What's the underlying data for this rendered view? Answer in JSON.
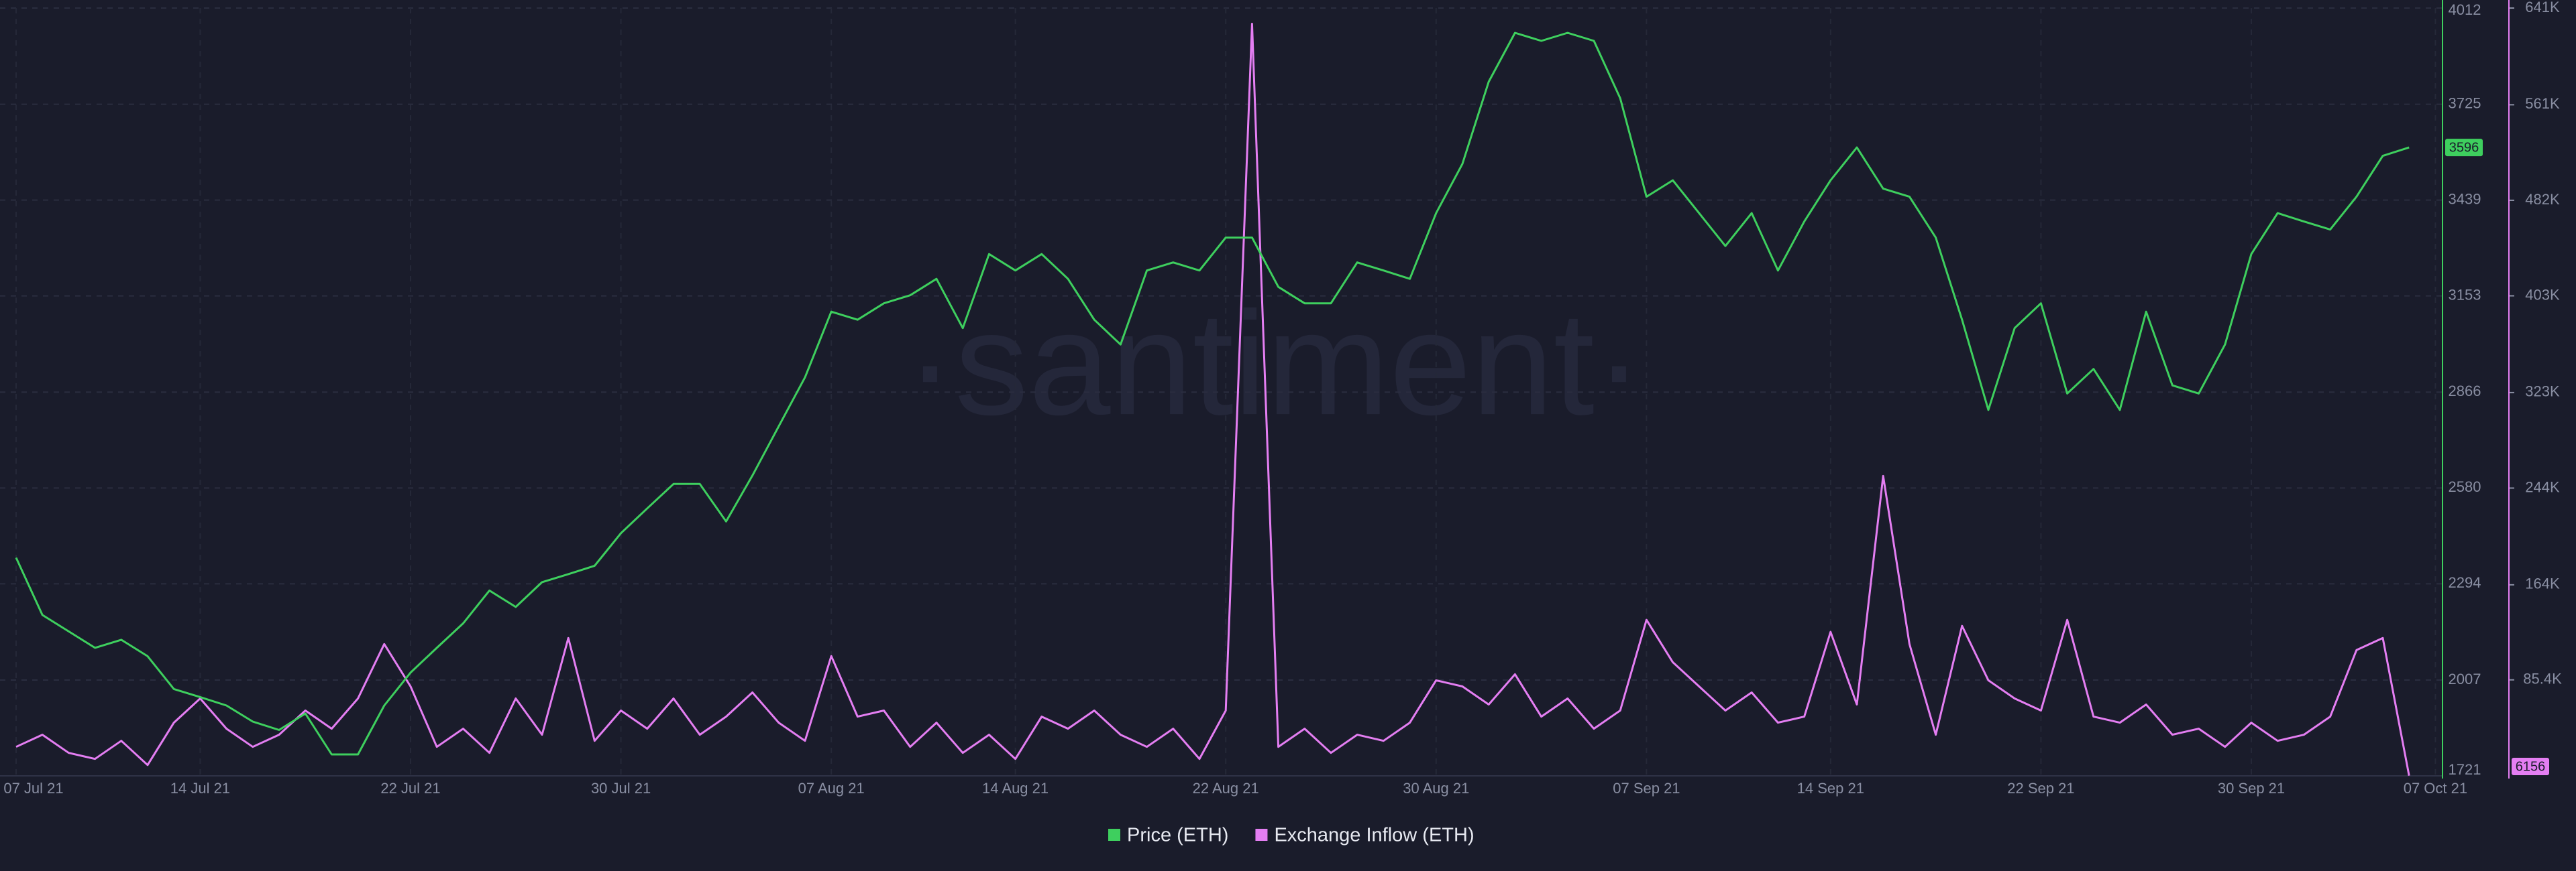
{
  "chart_data": {
    "type": "line",
    "watermark": "·santiment·",
    "categories": [
      "07 Jul 21",
      null,
      null,
      null,
      null,
      null,
      null,
      "14 Jul 21",
      null,
      null,
      null,
      null,
      null,
      null,
      null,
      "22 Jul 21",
      null,
      null,
      null,
      null,
      null,
      null,
      null,
      "30 Jul 21",
      null,
      null,
      null,
      null,
      null,
      null,
      null,
      "07 Aug 21",
      null,
      null,
      null,
      null,
      null,
      null,
      "14 Aug 21",
      null,
      null,
      null,
      null,
      null,
      null,
      null,
      "22 Aug 21",
      null,
      null,
      null,
      null,
      null,
      null,
      null,
      "30 Aug 21",
      null,
      null,
      null,
      null,
      null,
      null,
      null,
      "07 Sep 21",
      null,
      null,
      null,
      null,
      null,
      null,
      "14 Sep 21",
      null,
      null,
      null,
      null,
      null,
      null,
      null,
      "22 Sep 21",
      null,
      null,
      null,
      null,
      null,
      null,
      null,
      "30 Sep 21",
      null,
      null,
      null,
      null,
      null,
      null,
      "07 Oct 21"
    ],
    "series": [
      {
        "name": "Price (ETH)",
        "color": "#3ecf5e",
        "values": [
          2372,
          2201,
          2152,
          2103,
          2127,
          2078,
          1980,
          1956,
          1931,
          1883,
          1858,
          1907,
          1785,
          1785,
          1931,
          2029,
          2103,
          2176,
          2274,
          2225,
          2299,
          2323,
          2348,
          2445,
          2519,
          2592,
          2592,
          2480,
          2617,
          2764,
          2910,
          3106,
          3082,
          3131,
          3155,
          3204,
          3057,
          3278,
          3229,
          3278,
          3204,
          3082,
          3008,
          3229,
          3253,
          3229,
          3327,
          3327,
          3180,
          3131,
          3131,
          3253,
          3229,
          3204,
          3400,
          3547,
          3792,
          3938,
          3914,
          3938,
          3914,
          3743,
          3449,
          3498,
          3400,
          3302,
          3400,
          3229,
          3375,
          3498,
          3596,
          3473,
          3449,
          3327,
          3082,
          2813,
          3057,
          3131,
          2862,
          2935,
          2813,
          3106,
          2886,
          2862,
          3008,
          3278,
          3400,
          3375,
          3351,
          3449,
          3571,
          3596,
          null
        ]
      },
      {
        "name": "Exchange Inflow (ETH)",
        "color": "#e47ef2",
        "axis": "y2",
        "values": [
          30000,
          40000,
          25000,
          20000,
          35000,
          15000,
          50000,
          70000,
          45000,
          30000,
          40000,
          60000,
          45000,
          70000,
          115000,
          80000,
          30000,
          45000,
          25000,
          70000,
          40000,
          120000,
          35000,
          60000,
          45000,
          70000,
          40000,
          55000,
          75000,
          50000,
          35000,
          105000,
          55000,
          60000,
          30000,
          50000,
          25000,
          40000,
          20000,
          55000,
          45000,
          60000,
          40000,
          30000,
          45000,
          20000,
          60000,
          628000,
          30000,
          45000,
          25000,
          40000,
          35000,
          50000,
          85000,
          80000,
          65000,
          90000,
          55000,
          70000,
          45000,
          60000,
          135000,
          100000,
          80000,
          60000,
          75000,
          50000,
          55000,
          125000,
          65000,
          254000,
          115000,
          40000,
          130000,
          85000,
          70000,
          60000,
          135000,
          55000,
          50000,
          65000,
          40000,
          45000,
          30000,
          50000,
          35000,
          40000,
          55000,
          110000,
          120000,
          6156,
          null
        ]
      }
    ],
    "ylim": [
      1721,
      4012
    ],
    "yticks": [
      1721,
      2007,
      2294,
      2580,
      2866,
      3153,
      3439,
      3725,
      4012
    ],
    "y2lim": [
      6000,
      641000
    ],
    "y2ticks": [
      {
        "value": 85400,
        "label": "85.4K"
      },
      {
        "value": 164000,
        "label": "164K"
      },
      {
        "value": 244000,
        "label": "244K"
      },
      {
        "value": 323000,
        "label": "323K"
      },
      {
        "value": 403000,
        "label": "403K"
      },
      {
        "value": 482000,
        "label": "482K"
      },
      {
        "value": 561000,
        "label": "561K"
      },
      {
        "value": 641000,
        "label": "641K"
      }
    ],
    "grid": true
  }
}
